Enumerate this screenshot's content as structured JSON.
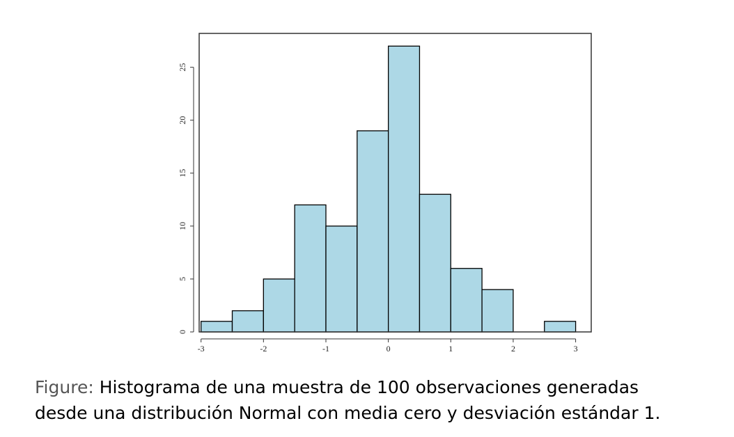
{
  "chart_data": {
    "type": "bar",
    "bins": [
      [
        -3,
        -2.5
      ],
      [
        -2.5,
        -2
      ],
      [
        -2,
        -1.5
      ],
      [
        -1.5,
        -1
      ],
      [
        -1,
        -0.5
      ],
      [
        -0.5,
        0
      ],
      [
        0,
        0.5
      ],
      [
        0.5,
        1
      ],
      [
        1,
        1.5
      ],
      [
        1.5,
        2
      ],
      [
        2,
        2.5
      ],
      [
        2.5,
        3
      ]
    ],
    "values": [
      1,
      2,
      5,
      12,
      10,
      19,
      27,
      13,
      6,
      4,
      0,
      1
    ],
    "xticks": [
      "-3",
      "-2",
      "-1",
      "0",
      "1",
      "2",
      "3"
    ],
    "xtick_values": [
      -3,
      -2,
      -1,
      0,
      1,
      2,
      3
    ],
    "yticks": [
      "0",
      "5",
      "10",
      "15",
      "20",
      "25"
    ],
    "ytick_values": [
      0,
      5,
      10,
      15,
      20,
      25
    ],
    "xlim": [
      -3.03,
      3.25
    ],
    "ylim": [
      0,
      28.2
    ],
    "bar_color": "#add8e6",
    "edge_color": "#000000",
    "grid": false
  },
  "caption": {
    "prefix": "Figure:",
    "line1": "Histograma de una muestra de 100 observaciones generadas",
    "line2": "desde una distribución Normal con media cero y desviación estándar 1."
  }
}
